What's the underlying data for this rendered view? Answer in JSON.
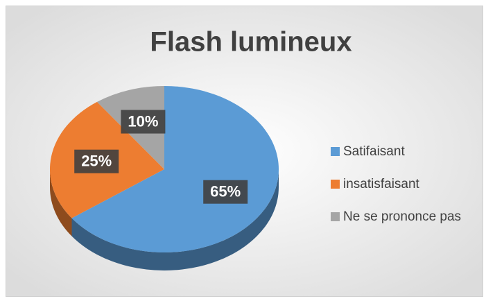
{
  "chart_data": {
    "type": "pie3d",
    "title": "Flash lumineux",
    "categories": [
      "Satifaisant",
      "insatisfaisant",
      "Ne se prononce pas"
    ],
    "values": [
      65,
      25,
      10
    ],
    "value_labels": [
      "65%",
      "25%",
      "10%"
    ],
    "colors": [
      "#5b9bd5",
      "#ed7d31",
      "#a5a5a5"
    ],
    "legend": "right"
  }
}
